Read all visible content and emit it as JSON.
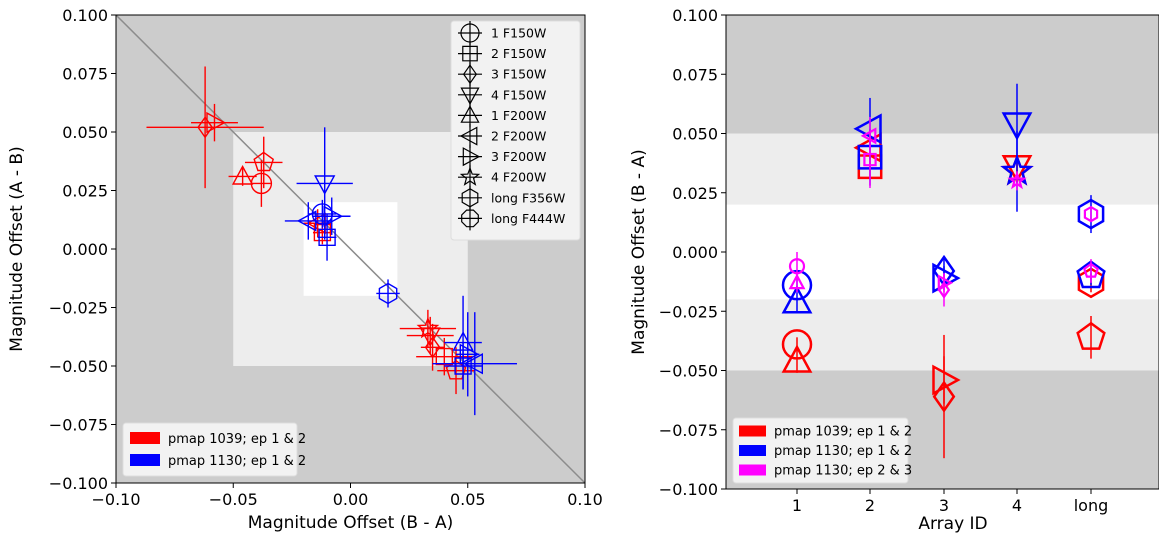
{
  "chart_data": [
    {
      "type": "scatter",
      "xlabel": "Magnitude Offset (B - A)",
      "ylabel": "Magnitude Offset (A - B)",
      "xlim": [
        -0.1,
        0.1
      ],
      "ylim": [
        -0.1,
        0.1
      ],
      "xticks": [
        "−0.10",
        "−0.05",
        "0.00",
        "0.05",
        "0.10"
      ],
      "yticks": [
        "0.100",
        "0.075",
        "0.050",
        "0.025",
        "0.000",
        "−0.025",
        "−0.050",
        "−0.075",
        "−0.100"
      ],
      "grid": false,
      "bands": [
        {
          "half_width": 0.05,
          "color": "#ededed"
        },
        {
          "half_width": 0.02,
          "color": "#ffffff"
        }
      ],
      "outer_color": "#cccccc",
      "reference_line": "y = -x",
      "marker_legend": {
        "placement": "top-right",
        "entries": [
          {
            "label": "1 F150W",
            "marker": "circle"
          },
          {
            "label": "2 F150W",
            "marker": "square"
          },
          {
            "label": "3 F150W",
            "marker": "diamond"
          },
          {
            "label": "4 F150W",
            "marker": "triangle-down"
          },
          {
            "label": "1 F200W",
            "marker": "triangle-up"
          },
          {
            "label": "2 F200W",
            "marker": "triangle-left"
          },
          {
            "label": "3 F200W",
            "marker": "triangle-right"
          },
          {
            "label": "4 F200W",
            "marker": "star"
          },
          {
            "label": "long F356W",
            "marker": "hexagon"
          },
          {
            "label": "long F444W",
            "marker": "octagon"
          }
        ]
      },
      "color_legend": {
        "placement": "lower-left",
        "entries": [
          {
            "label": "pmap 1039; ep 1 & 2",
            "color": "#ff0000"
          },
          {
            "label": "pmap 1130; ep 1 & 2",
            "color": "#0000ff"
          }
        ]
      },
      "points": [
        {
          "x": -0.062,
          "y": 0.052,
          "xerr": 0.025,
          "yerr": 0.026,
          "marker": "diamond",
          "color": "#ff0000"
        },
        {
          "x": -0.058,
          "y": 0.054,
          "xerr": 0.01,
          "yerr": 0.008,
          "marker": "triangle-right",
          "color": "#ff0000"
        },
        {
          "x": -0.046,
          "y": 0.031,
          "xerr": 0.006,
          "yerr": 0.004,
          "marker": "triangle-up",
          "color": "#ff0000"
        },
        {
          "x": -0.037,
          "y": 0.037,
          "xerr": 0.008,
          "yerr": 0.011,
          "marker": "pentagon",
          "color": "#ff0000"
        },
        {
          "x": -0.038,
          "y": 0.028,
          "xerr": 0.004,
          "yerr": 0.01,
          "marker": "circle",
          "color": "#ff0000"
        },
        {
          "x": -0.014,
          "y": 0.011,
          "xerr": 0.006,
          "yerr": 0.006,
          "marker": "triangle-left",
          "color": "#ff0000"
        },
        {
          "x": -0.012,
          "y": 0.007,
          "xerr": 0.004,
          "yerr": 0.005,
          "marker": "square",
          "color": "#ff0000"
        },
        {
          "x": -0.011,
          "y": 0.028,
          "xerr": 0.012,
          "yerr": 0.024,
          "marker": "triangle-down",
          "color": "#0000ff"
        },
        {
          "x": -0.012,
          "y": 0.015,
          "xerr": 0.006,
          "yerr": 0.006,
          "marker": "circle",
          "color": "#0000ff"
        },
        {
          "x": -0.018,
          "y": 0.012,
          "xerr": 0.01,
          "yerr": 0.008,
          "marker": "triangle-left",
          "color": "#0000ff"
        },
        {
          "x": -0.01,
          "y": 0.005,
          "xerr": 0.004,
          "yerr": 0.01,
          "marker": "square",
          "color": "#0000ff"
        },
        {
          "x": -0.008,
          "y": 0.014,
          "xerr": 0.008,
          "yerr": 0.008,
          "marker": "triangle-right",
          "color": "#0000ff"
        },
        {
          "x": 0.016,
          "y": -0.019,
          "xerr": 0.005,
          "yerr": 0.006,
          "marker": "hexagon",
          "color": "#0000ff"
        },
        {
          "x": 0.033,
          "y": -0.034,
          "xerr": 0.012,
          "yerr": 0.008,
          "marker": "star",
          "color": "#ff0000"
        },
        {
          "x": 0.034,
          "y": -0.037,
          "xerr": 0.01,
          "yerr": 0.008,
          "marker": "triangle-down",
          "color": "#ff0000"
        },
        {
          "x": 0.035,
          "y": -0.042,
          "xerr": 0.005,
          "yerr": 0.01,
          "marker": "diamond",
          "color": "#ff0000"
        },
        {
          "x": 0.04,
          "y": -0.046,
          "xerr": 0.012,
          "yerr": 0.008,
          "marker": "square",
          "color": "#ff0000"
        },
        {
          "x": 0.045,
          "y": -0.052,
          "xerr": 0.008,
          "yerr": 0.01,
          "marker": "pentagon",
          "color": "#ff0000"
        },
        {
          "x": 0.048,
          "y": -0.04,
          "xerr": 0.008,
          "yerr": 0.02,
          "marker": "triangle-up",
          "color": "#0000ff"
        },
        {
          "x": 0.05,
          "y": -0.045,
          "xerr": 0.005,
          "yerr": 0.018,
          "marker": "triangle-right",
          "color": "#0000ff"
        },
        {
          "x": 0.053,
          "y": -0.049,
          "xerr": 0.018,
          "yerr": 0.022,
          "marker": "triangle-left",
          "color": "#0000ff"
        },
        {
          "x": 0.048,
          "y": -0.05,
          "xerr": 0.008,
          "yerr": 0.01,
          "marker": "square",
          "color": "#0000ff"
        }
      ]
    },
    {
      "type": "scatter",
      "xlabel": "Array ID",
      "ylabel": "Magnitude Offset (B - A)",
      "categories": [
        "1",
        "2",
        "3",
        "4",
        "long"
      ],
      "ylim": [
        -0.1,
        0.1
      ],
      "yticks": [
        "0.100",
        "0.075",
        "0.050",
        "0.025",
        "0.000",
        "−0.025",
        "−0.050",
        "−0.075",
        "−0.100"
      ],
      "grid": false,
      "bands": [
        {
          "range": [
            -0.05,
            0.05
          ],
          "color": "#ededed"
        },
        {
          "range": [
            -0.02,
            0.02
          ],
          "color": "#ffffff"
        }
      ],
      "outer_color": "#cccccc",
      "color_legend": {
        "placement": "lower-left",
        "entries": [
          {
            "label": "pmap 1039; ep 1 & 2",
            "color": "#ff0000"
          },
          {
            "label": "pmap 1130; ep 1 & 2",
            "color": "#0000ff"
          },
          {
            "label": "pmap 1130; ep 2 & 3",
            "color": "#ff00ff"
          }
        ]
      },
      "points": [
        {
          "category": "1",
          "y": -0.039,
          "yerr": 0.003,
          "marker": "circle",
          "size": "large",
          "color": "#ff0000"
        },
        {
          "category": "1",
          "y": -0.046,
          "yerr": 0.005,
          "marker": "triangle-up",
          "size": "large",
          "color": "#ff0000"
        },
        {
          "category": "1",
          "y": -0.014,
          "yerr": 0.003,
          "marker": "circle",
          "size": "large",
          "color": "#0000ff"
        },
        {
          "category": "1",
          "y": -0.021,
          "yerr": 0.004,
          "marker": "triangle-up",
          "size": "large",
          "color": "#0000ff"
        },
        {
          "category": "1",
          "y": -0.006,
          "yerr": 0.006,
          "marker": "circle",
          "size": "small",
          "color": "#ff00ff"
        },
        {
          "category": "1",
          "y": -0.013,
          "yerr": 0.004,
          "marker": "triangle-up",
          "size": "small",
          "color": "#ff00ff"
        },
        {
          "category": "2",
          "y": 0.036,
          "yerr": 0.004,
          "marker": "square",
          "size": "large",
          "color": "#ff0000"
        },
        {
          "category": "2",
          "y": 0.044,
          "yerr": 0.005,
          "marker": "triangle-left",
          "size": "large",
          "color": "#ff0000"
        },
        {
          "category": "2",
          "y": 0.04,
          "yerr": 0.012,
          "marker": "square",
          "size": "large",
          "color": "#0000ff"
        },
        {
          "category": "2",
          "y": 0.052,
          "yerr": 0.013,
          "marker": "triangle-left",
          "size": "large",
          "color": "#0000ff"
        },
        {
          "category": "2",
          "y": 0.039,
          "yerr": 0.012,
          "marker": "square",
          "size": "small",
          "color": "#ff00ff"
        },
        {
          "category": "2",
          "y": 0.049,
          "yerr": 0.008,
          "marker": "triangle-left",
          "size": "small",
          "color": "#ff00ff"
        },
        {
          "category": "3",
          "y": -0.061,
          "yerr": 0.026,
          "marker": "diamond",
          "size": "large",
          "color": "#ff0000"
        },
        {
          "category": "3",
          "y": -0.054,
          "yerr": 0.01,
          "marker": "triangle-right",
          "size": "large",
          "color": "#ff0000"
        },
        {
          "category": "3",
          "y": -0.008,
          "yerr": 0.006,
          "marker": "diamond",
          "size": "large",
          "color": "#0000ff"
        },
        {
          "category": "3",
          "y": -0.011,
          "yerr": 0.005,
          "marker": "triangle-right",
          "size": "large",
          "color": "#0000ff"
        },
        {
          "category": "3",
          "y": -0.016,
          "yerr": 0.007,
          "marker": "diamond",
          "size": "small",
          "color": "#ff00ff"
        },
        {
          "category": "3",
          "y": -0.013,
          "yerr": 0.004,
          "marker": "triangle-right",
          "size": "small",
          "color": "#ff00ff"
        },
        {
          "category": "4",
          "y": 0.036,
          "yerr": 0.004,
          "marker": "triangle-down",
          "size": "large",
          "color": "#ff0000"
        },
        {
          "category": "4",
          "y": 0.034,
          "yerr": 0.005,
          "marker": "star",
          "size": "large",
          "color": "#ff0000"
        },
        {
          "category": "4",
          "y": 0.054,
          "yerr": 0.017,
          "marker": "triangle-down",
          "size": "large",
          "color": "#0000ff"
        },
        {
          "category": "4",
          "y": 0.034,
          "yerr": 0.017,
          "marker": "star",
          "size": "large",
          "color": "#0000ff"
        },
        {
          "category": "4",
          "y": 0.03,
          "yerr": 0.004,
          "marker": "star",
          "size": "small",
          "color": "#ff00ff"
        },
        {
          "category": "long",
          "y": -0.036,
          "yerr": 0.009,
          "marker": "pentagon",
          "size": "large",
          "color": "#ff0000"
        },
        {
          "category": "long",
          "y": -0.013,
          "yerr": 0.004,
          "marker": "hexagon",
          "size": "large",
          "color": "#ff0000"
        },
        {
          "category": "long",
          "y": 0.016,
          "yerr": 0.008,
          "marker": "hexagon",
          "size": "large",
          "color": "#0000ff"
        },
        {
          "category": "long",
          "y": -0.01,
          "yerr": 0.004,
          "marker": "pentagon",
          "size": "large",
          "color": "#0000ff"
        },
        {
          "category": "long",
          "y": 0.016,
          "yerr": 0.003,
          "marker": "hexagon",
          "size": "small",
          "color": "#ff00ff"
        },
        {
          "category": "long",
          "y": -0.008,
          "yerr": 0.005,
          "marker": "pentagon",
          "size": "small",
          "color": "#ff00ff"
        }
      ]
    }
  ]
}
